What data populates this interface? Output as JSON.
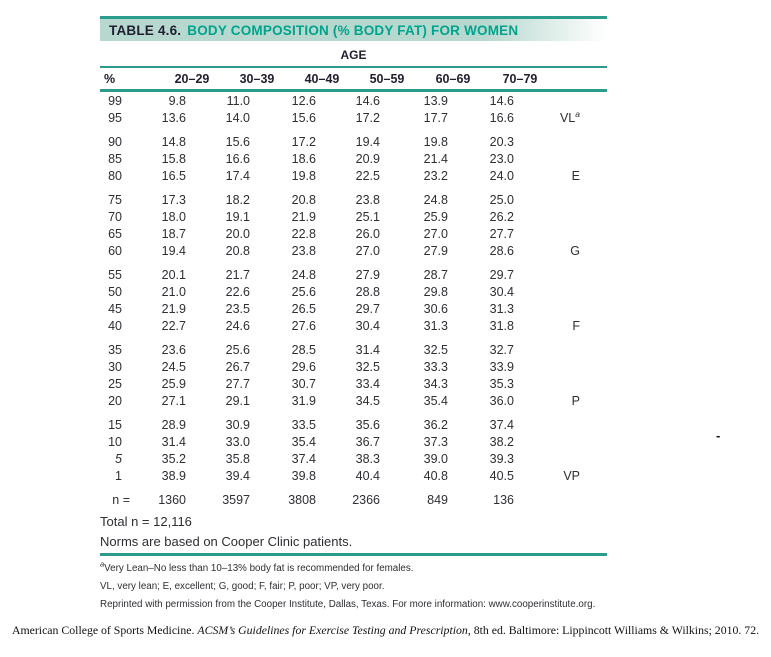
{
  "title": {
    "prefix": "TABLE 4.6.",
    "text": "BODY COMPOSITION (% BODY FAT) FOR WOMEN"
  },
  "age_header": "AGE",
  "columns": {
    "percentile": "%",
    "ages": [
      "20–29",
      "30–39",
      "40–49",
      "50–59",
      "60–69",
      "70–79"
    ]
  },
  "table": {
    "groups": [
      {
        "rows": [
          {
            "percentile": "99",
            "values": [
              "9.8",
              "11.0",
              "12.6",
              "14.6",
              "13.9",
              "14.6"
            ],
            "rating": ""
          },
          {
            "percentile": "95",
            "values": [
              "13.6",
              "14.0",
              "15.6",
              "17.2",
              "17.7",
              "16.6"
            ],
            "rating": "VL",
            "rating_sup": "a"
          }
        ]
      },
      {
        "rows": [
          {
            "percentile": "90",
            "values": [
              "14.8",
              "15.6",
              "17.2",
              "19.4",
              "19.8",
              "20.3"
            ],
            "rating": ""
          },
          {
            "percentile": "85",
            "values": [
              "15.8",
              "16.6",
              "18.6",
              "20.9",
              "21.4",
              "23.0"
            ],
            "rating": ""
          },
          {
            "percentile": "80",
            "values": [
              "16.5",
              "17.4",
              "19.8",
              "22.5",
              "23.2",
              "24.0"
            ],
            "rating": "E"
          }
        ]
      },
      {
        "rows": [
          {
            "percentile": "75",
            "values": [
              "17.3",
              "18.2",
              "20.8",
              "23.8",
              "24.8",
              "25.0"
            ],
            "rating": ""
          },
          {
            "percentile": "70",
            "values": [
              "18.0",
              "19.1",
              "21.9",
              "25.1",
              "25.9",
              "26.2"
            ],
            "rating": ""
          },
          {
            "percentile": "65",
            "values": [
              "18.7",
              "20.0",
              "22.8",
              "26.0",
              "27.0",
              "27.7"
            ],
            "rating": ""
          },
          {
            "percentile": "60",
            "values": [
              "19.4",
              "20.8",
              "23.8",
              "27.0",
              "27.9",
              "28.6"
            ],
            "rating": "G"
          }
        ]
      },
      {
        "rows": [
          {
            "percentile": "55",
            "values": [
              "20.1",
              "21.7",
              "24.8",
              "27.9",
              "28.7",
              "29.7"
            ],
            "rating": ""
          },
          {
            "percentile": "50",
            "values": [
              "21.0",
              "22.6",
              "25.6",
              "28.8",
              "29.8",
              "30.4"
            ],
            "rating": ""
          },
          {
            "percentile": "45",
            "values": [
              "21.9",
              "23.5",
              "26.5",
              "29.7",
              "30.6",
              "31.3"
            ],
            "rating": ""
          },
          {
            "percentile": "40",
            "values": [
              "22.7",
              "24.6",
              "27.6",
              "30.4",
              "31.3",
              "31.8"
            ],
            "rating": "F"
          }
        ]
      },
      {
        "rows": [
          {
            "percentile": "35",
            "values": [
              "23.6",
              "25.6",
              "28.5",
              "31.4",
              "32.5",
              "32.7"
            ],
            "rating": ""
          },
          {
            "percentile": "30",
            "values": [
              "24.5",
              "26.7",
              "29.6",
              "32.5",
              "33.3",
              "33.9"
            ],
            "rating": ""
          },
          {
            "percentile": "25",
            "values": [
              "25.9",
              "27.7",
              "30.7",
              "33.4",
              "34.3",
              "35.3"
            ],
            "rating": ""
          },
          {
            "percentile": "20",
            "values": [
              "27.1",
              "29.1",
              "31.9",
              "34.5",
              "35.4",
              "36.0"
            ],
            "rating": "P"
          }
        ]
      },
      {
        "rows": [
          {
            "percentile": "15",
            "values": [
              "28.9",
              "30.9",
              "33.5",
              "35.6",
              "36.2",
              "37.4"
            ],
            "rating": ""
          },
          {
            "percentile": "10",
            "values": [
              "31.4",
              "33.0",
              "35.4",
              "36.7",
              "37.3",
              "38.2"
            ],
            "rating": ""
          },
          {
            "percentile": "5",
            "italic": true,
            "values": [
              "35.2",
              "35.8",
              "37.4",
              "38.3",
              "39.0",
              "39.3"
            ],
            "rating": ""
          },
          {
            "percentile": "1",
            "values": [
              "38.9",
              "39.4",
              "39.8",
              "40.4",
              "40.8",
              "40.5"
            ],
            "rating": "VP"
          }
        ]
      }
    ],
    "n_row": {
      "label": "n =",
      "values": [
        "1360",
        "3597",
        "3808",
        "2366",
        "849",
        "136"
      ]
    }
  },
  "summary": {
    "total": "Total n = 12,116",
    "norms": "Norms are based on Cooper Clinic patients."
  },
  "footnotes": [
    {
      "sup": "a",
      "text": "Very Lean–No less than 10–13%  body fat is recommended for females."
    },
    {
      "sup": "",
      "text": "VL, very lean; E, excellent; G, good; F, fair; P, poor; VP, very poor."
    },
    {
      "sup": "",
      "text": "Reprinted with permission from the Cooper Institute, Dallas, Texas. For more information: www.cooperinstitute.org."
    }
  ],
  "citation": {
    "prefix": "American College of Sports Medicine. ",
    "italic": "ACSM’s Guidelines for Exercise Testing and Prescription",
    "suffix": ", 8th ed. Baltimore: Lippincott Williams & Wilkins; 2010. 72."
  },
  "stray_mark": "-",
  "colors": {
    "teal_line": "#2b9c8b",
    "teal_title": "#00a38c",
    "band_bg": "#b7d8cf",
    "text": "#2e2e33"
  }
}
